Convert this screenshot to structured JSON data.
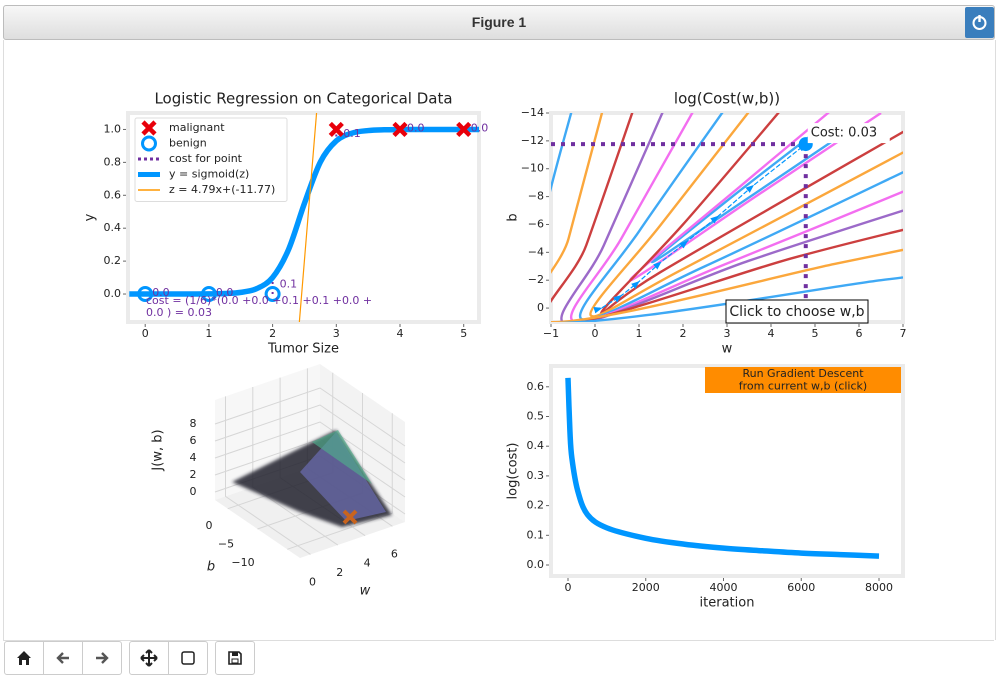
{
  "window": {
    "title": "Figure 1"
  },
  "chart_data": [
    {
      "type": "line",
      "title": "Logistic Regression on Categorical Data",
      "xlabel": "Tumor Size",
      "ylabel": "y",
      "xlim": [
        -0.27,
        5.24
      ],
      "ylim": [
        -0.17,
        1.1
      ],
      "xticks": [
        0,
        1,
        2,
        3,
        4,
        5
      ],
      "yticks": [
        {
          "value": 0,
          "label": "0.0"
        },
        {
          "value": 0.2,
          "label": "0.2"
        },
        {
          "value": 0.4,
          "label": "0.4"
        },
        {
          "value": 0.6,
          "label": "0.6"
        },
        {
          "value": 0.8,
          "label": "0.8"
        },
        {
          "value": 1,
          "label": "1.0"
        }
      ],
      "grid": false,
      "legend": "upper left",
      "series": [
        {
          "name": "malignant",
          "marker": "x",
          "color": "#e8000b",
          "x": [
            3,
            4,
            5
          ],
          "values": [
            1,
            1,
            1
          ]
        },
        {
          "name": "benign",
          "marker": "o",
          "color": "#0096ff",
          "x": [
            0,
            1,
            2
          ],
          "values": [
            0,
            0,
            0
          ]
        },
        {
          "name": "cost for point",
          "marker": "dotted",
          "color": "#7030a0",
          "x": [
            0,
            1,
            2,
            3,
            4,
            5
          ],
          "values": [
            0,
            0.0009,
            0.1006,
            0.9309,
            0.9994,
            1
          ]
        },
        {
          "name": "y = sigmoid(z)",
          "marker": "thick-line",
          "color": "#0096ff",
          "x": [
            -0.25,
            0,
            0.25,
            0.5,
            0.75,
            1,
            1.25,
            1.5,
            1.75,
            2,
            2.25,
            2.5,
            2.75,
            3,
            3.25,
            3.5,
            3.75,
            4,
            4.25,
            4.5,
            4.75,
            5,
            5.25
          ],
          "values": [
            0,
            0,
            0,
            0.0001,
            0.0003,
            0.0009,
            0.0031,
            0.0101,
            0.0326,
            0.1006,
            0.2704,
            0.5511,
            0.8026,
            0.9309,
            0.9781,
            0.9933,
            0.998,
            0.9994,
            0.9998,
            0.9999,
            1,
            1,
            1
          ]
        },
        {
          "name": "z = 4.79x+(-11.77)",
          "marker": "line",
          "color": "#ff9900",
          "x": [
            2.42,
            2.69
          ],
          "values": [
            -0.17,
            1.1
          ]
        }
      ],
      "cost_labels": [
        "0.0",
        "0.0",
        "0.1",
        "0.1",
        "0.0",
        "0.0"
      ],
      "cost_text": [
        "cost = (1/6)*(0.0 +0.0 +0.1 +0.1 +0.0 +",
        "0.0 ) = 0.03"
      ]
    },
    {
      "type": "contour",
      "title": "log(Cost(w,b))",
      "xlabel": "w",
      "ylabel": "b",
      "xlim": [
        -1,
        7
      ],
      "ylim": [
        1,
        -14
      ],
      "xticks": [
        {
          "value": -1,
          "label": "−1"
        },
        0,
        1,
        2,
        3,
        4,
        5,
        6,
        7
      ],
      "yticks": [
        {
          "value": -14,
          "label": "−14"
        },
        {
          "value": -12,
          "label": "−12"
        },
        {
          "value": -10,
          "label": "−10"
        },
        {
          "value": -8,
          "label": "−8"
        },
        {
          "value": -6,
          "label": "−6"
        },
        {
          "value": -4,
          "label": "−4"
        },
        {
          "value": -2,
          "label": "−2"
        },
        0
      ],
      "contours": [
        {
          "color": "#3fa9f5",
          "x": [
            5.0,
            3.0,
            1.3,
            3.2,
            5.5
          ],
          "values": [
            -12.6,
            -7.7,
            -3.3,
            -7.3,
            -12.2
          ]
        },
        {
          "color": "#f36ef0",
          "x": [
            5.6,
            3.4,
            0.8,
            3.6,
            6.5
          ],
          "values": [
            -14.8,
            -9.0,
            -2.0,
            -7.9,
            -14.0
          ]
        },
        {
          "color": "#cc3f3f",
          "x": [
            4.3,
            2.0,
            0.15,
            1.5,
            7.2
          ],
          "values": [
            -14.5,
            -6.0,
            0.3,
            -2.6,
            -13.0
          ]
        },
        {
          "color": "#fba73c",
          "x": [
            3.6,
            1.5,
            -0.1,
            2.0,
            7.5
          ],
          "values": [
            -14.5,
            -6.0,
            0.5,
            -2.8,
            -12.0
          ]
        },
        {
          "color": "#3fa9f5",
          "x": [
            3.0,
            1.0,
            -0.3,
            2.5,
            7.5
          ],
          "values": [
            -14.5,
            -5.5,
            0.8,
            -3.0,
            -10.5
          ]
        },
        {
          "color": "#f36ef0",
          "x": [
            2.3,
            0.6,
            -0.45,
            3.0,
            7.5
          ],
          "values": [
            -14.5,
            -5.0,
            1.0,
            -3.2,
            -9.0
          ]
        },
        {
          "color": "#9c6ac9",
          "x": [
            1.6,
            0.2,
            -0.6,
            3.5,
            7.5
          ],
          "values": [
            -14.5,
            -4.5,
            1.2,
            -3.4,
            -7.5
          ]
        },
        {
          "color": "#cc3f3f",
          "x": [
            0.9,
            -0.2,
            -0.9,
            4.5,
            7.5
          ],
          "values": [
            -14.5,
            -4.5,
            1.2,
            -3.6,
            -6.0
          ]
        },
        {
          "color": "#fba73c",
          "x": [
            0.2,
            -0.6,
            -1.1,
            5.5,
            7.5
          ],
          "values": [
            -14.5,
            -5.0,
            1.0,
            -3.2,
            -4.5
          ]
        },
        {
          "color": "#3fa9f5",
          "x": [
            -0.5,
            -1.2,
            -1.5,
            6.5,
            7.5
          ],
          "values": [
            -14.5,
            -6.0,
            1.0,
            -2.0,
            -2.5
          ]
        }
      ],
      "path": {
        "color": "#0096ff",
        "x": [
          0,
          0.15,
          0.6,
          1.0,
          1.5,
          2.1,
          2.8,
          3.6,
          4.79
        ],
        "values": [
          0,
          0,
          -0.9,
          -1.9,
          -3.3,
          -4.8,
          -6.6,
          -8.8,
          -11.77
        ]
      },
      "point": {
        "x": 4.79,
        "value": -11.77,
        "color": "#0096ff",
        "label": "Cost: 0.03"
      },
      "crosshair_color": "#7030a0",
      "button": "Click to choose w,b"
    },
    {
      "type": "surface3d",
      "xlabel": "w",
      "ylabel": "b",
      "zlabel": "J(w, b)",
      "xticks": [
        0,
        2,
        4,
        6
      ],
      "yticks": [
        0,
        {
          "value": -5,
          "label": "−5"
        },
        {
          "value": -10,
          "label": "−10"
        }
      ],
      "zticks": [
        0,
        2,
        4,
        6,
        8
      ]
    },
    {
      "type": "line",
      "xlabel": "iteration",
      "ylabel": "log(cost)",
      "xlim": [
        -437,
        8617
      ],
      "ylim": [
        -0.037,
        0.67
      ],
      "xticks": [
        0,
        2000,
        4000,
        6000,
        8000
      ],
      "yticks": [
        {
          "value": 0,
          "label": "0.0"
        },
        {
          "value": 0.1,
          "label": "0.1"
        },
        {
          "value": 0.2,
          "label": "0.2"
        },
        {
          "value": 0.3,
          "label": "0.3"
        },
        {
          "value": 0.4,
          "label": "0.4"
        },
        {
          "value": 0.5,
          "label": "0.5"
        },
        {
          "value": 0.6,
          "label": "0.6"
        }
      ],
      "grid": false,
      "series": [
        {
          "marker": "thick-line",
          "color": "#0096ff",
          "x": [
            0,
            50,
            100,
            250,
            500,
            1000,
            2000,
            3000,
            4000,
            5000,
            6000,
            7000,
            8000
          ],
          "values": [
            0.63,
            0.45,
            0.36,
            0.25,
            0.17,
            0.125,
            0.09,
            0.07,
            0.057,
            0.048,
            0.04,
            0.035,
            0.03
          ]
        }
      ],
      "button": [
        "Run Gradient Descent",
        "from current w,b (click)"
      ],
      "button_color": "#ff8c00"
    }
  ]
}
